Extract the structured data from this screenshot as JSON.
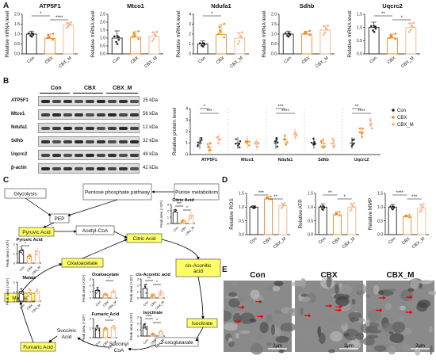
{
  "panels": {
    "A": "A",
    "B": "B",
    "C": "C",
    "D": "D",
    "E": "E"
  },
  "colors": {
    "con": "#222222",
    "cbx": "#f08a24",
    "cbx_m": "#f4b183",
    "highlight": "#ffff66"
  },
  "chart_data": [
    {
      "id": "A1",
      "type": "bar",
      "title": "ATP5F1",
      "ylabel": "Relative mRNA level",
      "categories": [
        "Con",
        "CBX",
        "CBX_M"
      ],
      "values": [
        1.0,
        0.78,
        1.45
      ],
      "errors": [
        0.15,
        0.22,
        0.12
      ],
      "ylim": [
        0,
        2.0
      ],
      "yticks": [
        "0.0",
        "0.5",
        "1.0",
        "1.5",
        "2.0"
      ],
      "sig": [
        {
          "from": 0,
          "to": 1,
          "label": "*"
        },
        {
          "from": 1,
          "to": 2,
          "label": "****"
        }
      ]
    },
    {
      "id": "A2",
      "type": "bar",
      "title": "Mtco1",
      "ylabel": "Relative mRNA level",
      "categories": [
        "Con",
        "CBX",
        "CBX_M"
      ],
      "values": [
        1.0,
        1.05,
        1.1
      ],
      "errors": [
        0.45,
        0.35,
        0.25
      ],
      "ylim": [
        0,
        2.5
      ],
      "yticks": [
        "0.0",
        "0.5",
        "1.0",
        "1.5",
        "2.0",
        "2.5"
      ],
      "sig": []
    },
    {
      "id": "A3",
      "type": "bar",
      "title": "Ndufa1",
      "ylabel": "Relative mRNA level",
      "categories": [
        "Con",
        "CBX",
        "CBX_M"
      ],
      "values": [
        1.0,
        1.95,
        1.6
      ],
      "errors": [
        0.3,
        1.0,
        0.5
      ],
      "ylim": [
        0,
        4
      ],
      "yticks": [
        "0",
        "1",
        "2",
        "3",
        "4"
      ],
      "sig": [
        {
          "from": 0,
          "to": 1,
          "label": "*"
        }
      ]
    },
    {
      "id": "A4",
      "type": "bar",
      "title": "Sdhb",
      "ylabel": "Relative mRNA level",
      "categories": [
        "Con",
        "CBX",
        "CBX_M"
      ],
      "values": [
        1.0,
        1.0,
        1.2
      ],
      "errors": [
        0.15,
        0.15,
        0.2
      ],
      "ylim": [
        0,
        2.0
      ],
      "yticks": [
        "0.0",
        "0.5",
        "1.0",
        "1.5",
        "2.0"
      ],
      "sig": []
    },
    {
      "id": "A5",
      "type": "bar",
      "title": "Uqcrc2",
      "ylabel": "Relative mRNA level",
      "categories": [
        "Con",
        "CBX",
        "CBX_M"
      ],
      "values": [
        1.0,
        0.6,
        1.0
      ],
      "errors": [
        0.2,
        0.15,
        0.15
      ],
      "ylim": [
        0,
        1.5
      ],
      "yticks": [
        "0.0",
        "0.5",
        "1.0",
        "1.5"
      ],
      "sig": [
        {
          "from": 0,
          "to": 1,
          "label": "**"
        },
        {
          "from": 1,
          "to": 2,
          "label": "*"
        }
      ]
    },
    {
      "id": "B",
      "type": "scatter",
      "ylabel": "Relative protein level",
      "categories": [
        "ATP5F1",
        "Mtco1",
        "Ndufa1",
        "Sdhb",
        "Uqcrc2"
      ],
      "series": [
        {
          "name": "Con",
          "values": [
            1.0,
            1.0,
            1.0,
            1.0,
            1.0
          ]
        },
        {
          "name": "CBX",
          "values": [
            0.6,
            1.1,
            1.3,
            0.95,
            1.9
          ]
        },
        {
          "name": "CBX_M",
          "values": [
            1.3,
            0.9,
            1.75,
            1.0,
            2.7
          ]
        }
      ],
      "ylim": [
        0,
        4
      ],
      "yticks": [
        "0",
        "1",
        "2",
        "3",
        "4"
      ],
      "sig": [
        {
          "cat": 0,
          "labels": [
            "*",
            "***"
          ]
        },
        {
          "cat": 2,
          "labels": [
            "***",
            "****"
          ]
        },
        {
          "cat": 4,
          "labels": [
            "**",
            "****"
          ]
        }
      ]
    },
    {
      "id": "D1",
      "type": "bar",
      "ylabel": "Relative ROS",
      "categories": [
        "Con",
        "CBX",
        "CBX_M"
      ],
      "values": [
        1.0,
        1.3,
        1.05
      ],
      "errors": [
        0.05,
        0.08,
        0.08
      ],
      "ylim": [
        0,
        1.5
      ],
      "yticks": [
        "0.0",
        "0.5",
        "1.0",
        "1.5"
      ],
      "sig": [
        {
          "from": 0,
          "to": 1,
          "label": "***"
        },
        {
          "from": 1,
          "to": 2,
          "label": "**"
        }
      ]
    },
    {
      "id": "D2",
      "type": "bar",
      "ylabel": "Relative ATP",
      "categories": [
        "Con",
        "CBX",
        "CBX_M"
      ],
      "values": [
        1.0,
        0.72,
        1.0
      ],
      "errors": [
        0.12,
        0.1,
        0.12
      ],
      "ylim": [
        0,
        1.5
      ],
      "yticks": [
        "0.0",
        "0.5",
        "1.0",
        "1.5"
      ],
      "sig": [
        {
          "from": 0,
          "to": 1,
          "label": "**"
        },
        {
          "from": 1,
          "to": 2,
          "label": "*"
        }
      ]
    },
    {
      "id": "D3",
      "type": "bar",
      "ylabel": "Relative MMP",
      "categories": [
        "Con",
        "CBX",
        "CBX_M"
      ],
      "values": [
        1.0,
        0.65,
        0.97
      ],
      "errors": [
        0.1,
        0.06,
        0.12
      ],
      "ylim": [
        0,
        1.5
      ],
      "yticks": [
        "0.0",
        "0.5",
        "1.0",
        "1.5"
      ],
      "sig": [
        {
          "from": 0,
          "to": 1,
          "label": "****"
        },
        {
          "from": 1,
          "to": 2,
          "label": "***"
        }
      ]
    },
    {
      "id": "C_pyruvic",
      "type": "bar",
      "title": "Pyruvic Acid",
      "ylabel": "Peak area (×10⁵)",
      "categories": [
        "Con",
        "CBX",
        "CBX_M"
      ],
      "values": [
        1.3,
        0.7,
        1.2
      ],
      "errors": [
        0.4,
        0.2,
        0.3
      ],
      "ylim": [
        0,
        2
      ],
      "yticks": [
        "0",
        "1",
        "2"
      ],
      "sig": [
        {
          "from": 0,
          "to": 1,
          "label": "*"
        }
      ]
    },
    {
      "id": "C_malate",
      "type": "bar",
      "title": "Malate",
      "ylabel": "Peak area (×10⁶)",
      "categories": [
        "Con",
        "CBX",
        "CBX_M"
      ],
      "values": [
        1.0,
        0.9,
        1.0
      ],
      "errors": [
        0.3,
        0.4,
        0.3
      ],
      "ylim": [
        0,
        2
      ],
      "yticks": [
        "0",
        "1",
        "2"
      ],
      "sig": []
    },
    {
      "id": "C_oxaloacetate",
      "type": "bar",
      "title": "Oxaloacetate",
      "ylabel": "Peak area (×10⁴)",
      "categories": [
        "Con",
        "CBX",
        "CBX_M"
      ],
      "values": [
        1.2,
        0.6,
        1.0
      ],
      "errors": [
        0.5,
        0.2,
        0.2
      ],
      "ylim": [
        0,
        3
      ],
      "yticks": [
        "0",
        "1",
        "2",
        "3"
      ],
      "sig": [
        {
          "from": 1,
          "to": 2,
          "label": "*"
        }
      ]
    },
    {
      "id": "C_fumaric",
      "type": "bar",
      "title": "Fumaric Acid",
      "ylabel": "Peak area (×10⁵)",
      "categories": [
        "Con",
        "CBX",
        "CBX_M"
      ],
      "values": [
        1.0,
        0.9,
        1.1
      ],
      "errors": [
        0.3,
        0.2,
        0.2
      ],
      "ylim": [
        0,
        2
      ],
      "yticks": [
        "0",
        "1",
        "2"
      ],
      "sig": [
        {
          "from": 1,
          "to": 2,
          "label": "*"
        }
      ]
    },
    {
      "id": "C_citric",
      "type": "bar",
      "title": "Citric Acid",
      "ylabel": "Peak area (×10⁶)",
      "categories": [
        "Con",
        "CBX",
        "CBX_M"
      ],
      "values": [
        1.8,
        0.4,
        1.2
      ],
      "errors": [
        0.4,
        0.2,
        0.5
      ],
      "ylim": [
        0,
        3
      ],
      "yticks": [
        "0",
        "1",
        "2",
        "3"
      ],
      "sig": [
        {
          "from": 0,
          "to": 1,
          "label": "***"
        },
        {
          "from": 1,
          "to": 2,
          "label": "*"
        }
      ]
    },
    {
      "id": "C_cisaconitic",
      "type": "bar",
      "title": "cis-Aconitic acid",
      "ylabel": "Peak area (×10⁴)",
      "categories": [
        "Con",
        "CBX",
        "CBX_M"
      ],
      "values": [
        1.5,
        0.4,
        0.8
      ],
      "errors": [
        0.6,
        0.2,
        0.4
      ],
      "ylim": [
        0,
        3
      ],
      "yticks": [
        "0",
        "1",
        "2",
        "3"
      ],
      "sig": [
        {
          "from": 0,
          "to": 1,
          "label": "**"
        },
        {
          "from": 1,
          "to": 2,
          "label": "*"
        }
      ]
    },
    {
      "id": "C_isocitrate",
      "type": "bar",
      "title": "Isocitrate",
      "ylabel": "Peak area (×10⁵)",
      "categories": [
        "Con",
        "CBX",
        "CBX_M"
      ],
      "values": [
        1.5,
        0.3,
        0.7
      ],
      "errors": [
        0.5,
        0.15,
        0.3
      ],
      "ylim": [
        0,
        3
      ],
      "yticks": [
        "0",
        "1",
        "2",
        "3"
      ],
      "sig": [
        {
          "from": 0,
          "to": 1,
          "label": "****"
        },
        {
          "from": 1,
          "to": 2,
          "label": "*"
        }
      ]
    }
  ],
  "western_blot": {
    "groups": [
      "Con",
      "CBX",
      "CBX_M"
    ],
    "rows": [
      {
        "name": "ATP5F1",
        "kda": "25 kDa"
      },
      {
        "name": "Mtco1",
        "kda": "56 kDa"
      },
      {
        "name": "Ndufa1",
        "kda": "12 kDa"
      },
      {
        "name": "Sdhb",
        "kda": "32 kDa"
      },
      {
        "name": "Uqcrc2",
        "kda": "48 kDa"
      },
      {
        "name": "β-actin",
        "kda": "42 kDa"
      }
    ],
    "legend": [
      "Con",
      "CBX",
      "CBX_M"
    ]
  },
  "pathway": {
    "glycolysis": "Glycolysis",
    "ppp": "Pentose phosphate pathway",
    "purine": "Purine metabolism",
    "pep": "PEP",
    "pyruvic": "Pyruvic Acid",
    "acetyl": "Acetyl-CoA",
    "citric": "Citric Acid",
    "oxaloacetate": "Oxaloacetate",
    "cisaconitic": "cis-Aconitic acid",
    "isocitrate": "Isocitrate",
    "malate": "Malate",
    "fumaric": "Fumaric Acid",
    "succinic": "Succinic Acid",
    "succinyl": "Succinyl CoA",
    "oxoglutarate": "2-oxoglutarate"
  },
  "em": {
    "images": [
      {
        "label": "Con",
        "scale": "2μm"
      },
      {
        "label": "CBX",
        "scale": "2μm"
      },
      {
        "label": "CBX_M",
        "scale": "2μm"
      }
    ]
  }
}
